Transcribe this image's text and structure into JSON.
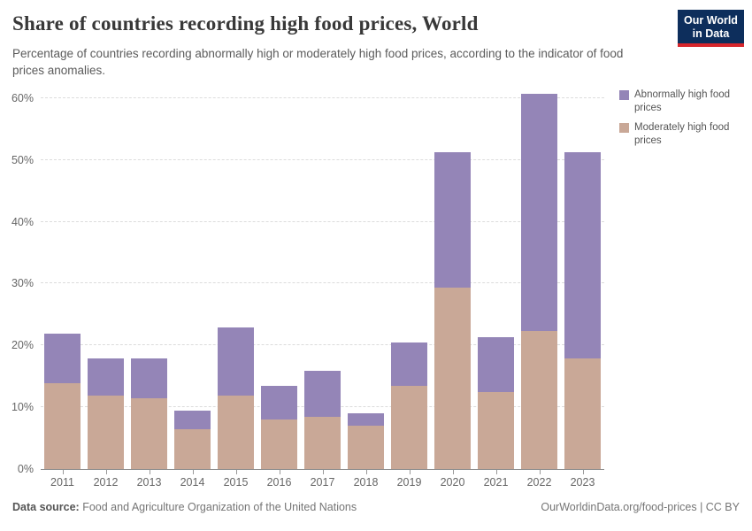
{
  "header": {
    "logo": {
      "line1": "Our World",
      "line2": "in Data"
    }
  },
  "chart_data": {
    "type": "bar",
    "stacked": true,
    "title": "Share of countries recording high food prices, World",
    "subtitle": "Percentage of countries recording abnormally high or moderately high food prices, according to the indicator of food prices anomalies.",
    "categories": [
      2011,
      2012,
      2013,
      2014,
      2015,
      2016,
      2017,
      2018,
      2019,
      2020,
      2021,
      2022,
      2023
    ],
    "series": [
      {
        "name": "Moderately high food prices",
        "color": "#c9a897",
        "values": [
          13.93,
          11.94,
          11.44,
          6.47,
          11.94,
          7.96,
          8.46,
          6.97,
          13.43,
          29.35,
          12.44,
          22.39,
          17.91
        ]
      },
      {
        "name": "Abnormally high food prices",
        "color": "#9485b7",
        "values": [
          7.96,
          5.97,
          6.47,
          2.99,
          10.95,
          5.47,
          7.46,
          1.99,
          6.97,
          21.89,
          8.96,
          38.31,
          33.33
        ]
      }
    ],
    "legend": [
      {
        "label": "Abnormally high food prices",
        "color": "#9485b7"
      },
      {
        "label": "Moderately high food prices",
        "color": "#c9a897"
      }
    ],
    "xlabel": "",
    "ylabel": "",
    "y_ticks": [
      "0%",
      "10%",
      "20%",
      "30%",
      "40%",
      "50%",
      "60%"
    ],
    "y_tick_values": [
      0,
      10,
      20,
      30,
      40,
      50,
      60
    ],
    "ylim": [
      0,
      62.4
    ],
    "grid": "horizontal-dashed",
    "legend_position": "right"
  },
  "footer": {
    "source_label": "Data source:",
    "source_text": "Food and Agriculture Organization of the United Nations",
    "attribution": "OurWorldinData.org/food-prices | CC BY"
  }
}
